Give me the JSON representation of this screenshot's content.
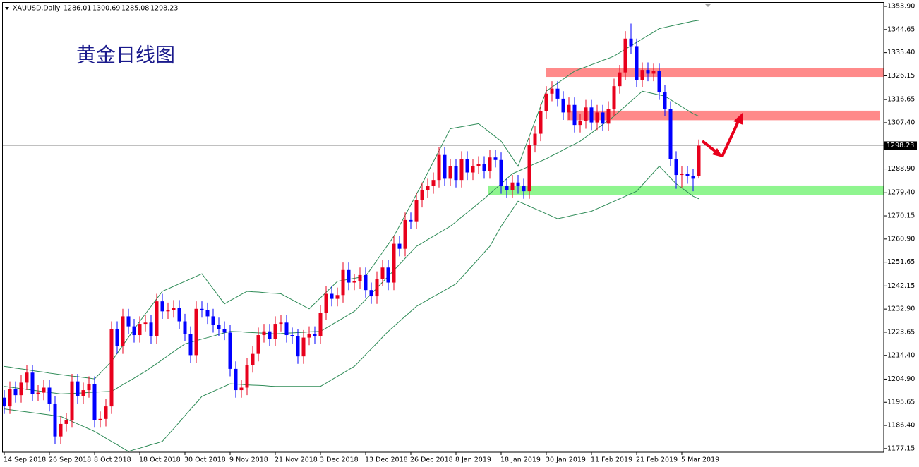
{
  "chart_data": {
    "type": "candlestick",
    "title": "XAUUSD,Daily",
    "annotation": "黄金日线图",
    "categories": [
      "14 Sep 2018",
      null,
      null,
      null,
      null,
      null,
      null,
      null,
      "26 Sep 2018",
      null,
      null,
      null,
      null,
      null,
      null,
      null,
      "8 Oct 2018",
      null,
      null,
      null,
      null,
      null,
      null,
      null,
      "18 Oct 2018",
      null,
      null,
      null,
      null,
      null,
      null,
      null,
      "30 Oct 2018",
      null,
      null,
      null,
      null,
      null,
      null,
      null,
      "9 Nov 2018",
      null,
      null,
      null,
      null,
      null,
      null,
      null,
      "21 Nov 2018",
      null,
      null,
      null,
      null,
      null,
      null,
      null,
      "3 Dec 2018",
      null,
      null,
      null,
      null,
      null,
      null,
      null,
      "13 Dec 2018",
      null,
      null,
      null,
      null,
      null,
      null,
      null,
      "26 Dec 2018",
      null,
      null,
      null,
      null,
      null,
      null,
      null,
      "8 Jan 2019",
      null,
      null,
      null,
      null,
      null,
      null,
      null,
      "18 Jan 2019",
      null,
      null,
      null,
      null,
      null,
      null,
      null,
      "30 Jan 2019",
      null,
      null,
      null,
      null,
      null,
      null,
      null,
      "11 Feb 2019",
      null,
      null,
      null,
      null,
      null,
      null,
      null,
      "21 Feb 2019",
      null,
      null,
      null,
      null,
      null,
      null,
      null,
      "5 Mar 2019",
      null,
      null,
      null
    ],
    "open": [
      1197.5,
      1194.0,
      1201.0,
      1198.5,
      1203.5,
      1207.5,
      1199.0,
      1199.5,
      1201.5,
      1195.0,
      1182.0,
      1187.0,
      1188.5,
      1204.0,
      1198.0,
      1200.5,
      1203.0,
      1188.5,
      1189.0,
      1194.0,
      1225.0,
      1218.0,
      1230.0,
      1226.0,
      1222.5,
      1227.0,
      1227.5,
      1222.0,
      1236.0,
      1232.0,
      1232.5,
      1233.5,
      1228.0,
      1223.0,
      1214.5,
      1233.0,
      1232.5,
      1230.0,
      1226.5,
      1225.0,
      1223.5,
      1209.0,
      1200.5,
      1201.5,
      1210.5,
      1215.0,
      1222.5,
      1224.0,
      1221.0,
      1227.0,
      1227.5,
      1222.5,
      1222.0,
      1214.0,
      1221.5,
      1223.0,
      1222.0,
      1231.5,
      1239.0,
      1237.0,
      1238.5,
      1248.5,
      1243.5,
      1244.0,
      1246.5,
      1240.5,
      1238.0,
      1245.0,
      1249.5,
      1243.5,
      1259.0,
      1257.0,
      1268.5,
      1268.0,
      1276.5,
      1280.5,
      1282.0,
      1284.5,
      1294.5,
      1285.0,
      1290.0,
      1284.5,
      1293.0,
      1287.5,
      1290.0,
      1291.0,
      1288.0,
      1293.5,
      1292.5,
      1282.0,
      1280.5,
      1283.5,
      1282.0,
      1280.0,
      1298.5,
      1303.0,
      1312.0,
      1319.0,
      1321.0,
      1317.0,
      1311.5,
      1314.5,
      1306.5,
      1308.0,
      1313.5,
      1307.5,
      1311.5,
      1307.0,
      1313.0,
      1322.0,
      1327.5,
      1341.0,
      1338.0,
      1324.5,
      1328.5,
      1327.0,
      1328.0,
      1319.5,
      1313.0,
      1293.0,
      1286.5,
      1287.0,
      1286.0,
      1286.01
    ],
    "high": [
      1200.5,
      1204,
      1204,
      1206.5,
      1210.5,
      1210.5,
      1202.5,
      1204.5,
      1204.5,
      1198,
      1190,
      1191.5,
      1207,
      1207,
      1203.5,
      1206,
      1206,
      1192,
      1197,
      1228,
      1228,
      1233,
      1233,
      1229,
      1230,
      1230.5,
      1230.5,
      1239,
      1239,
      1235.5,
      1236.5,
      1236.5,
      1231,
      1226,
      1236,
      1236,
      1235.5,
      1233,
      1229.5,
      1228,
      1226.5,
      1212,
      1204.5,
      1213.5,
      1218,
      1225.5,
      1227,
      1227,
      1230,
      1230.5,
      1230.5,
      1225.5,
      1225,
      1224.5,
      1226,
      1226,
      1234.5,
      1242,
      1242,
      1241.5,
      1251.5,
      1251.5,
      1247,
      1249.5,
      1249.5,
      1243.5,
      1248,
      1252.5,
      1252.5,
      1262,
      1262,
      1271.5,
      1271.5,
      1279.5,
      1283.5,
      1285,
      1287.5,
      1297.5,
      1297.5,
      1293,
      1293,
      1296,
      1296,
      1293,
      1294,
      1294,
      1296.5,
      1296.5,
      1295.5,
      1285,
      1286.5,
      1286.5,
      1285,
      1301.5,
      1306,
      1315,
      1322,
      1324,
      1324,
      1320,
      1317.5,
      1317.5,
      1311,
      1316.5,
      1316.5,
      1314.5,
      1314.5,
      1316,
      1325,
      1330.5,
      1344,
      1347,
      1341,
      1331.5,
      1331.5,
      1331,
      1331,
      1322.5,
      1316,
      1296,
      1290,
      1290,
      1289,
      1300.69
    ],
    "low": [
      1191,
      1191,
      1195.5,
      1195.5,
      1200.5,
      1196,
      1196,
      1196.5,
      1192,
      1179,
      1179,
      1184,
      1185.5,
      1195,
      1195,
      1197.5,
      1185.5,
      1185.5,
      1186,
      1191,
      1215,
      1215,
      1223,
      1219.5,
      1219.5,
      1224,
      1219,
      1219,
      1229,
      1229,
      1229.5,
      1225,
      1220,
      1211.5,
      1211.5,
      1229.5,
      1227,
      1223.5,
      1222,
      1220.5,
      1206,
      1197.5,
      1197.5,
      1198.5,
      1207.5,
      1212,
      1219.5,
      1218,
      1218,
      1224,
      1219.5,
      1219,
      1211,
      1211,
      1218.5,
      1219,
      1219,
      1228.5,
      1234,
      1234,
      1235.5,
      1240.5,
      1240.5,
      1241,
      1237.5,
      1235,
      1235,
      1242,
      1240.5,
      1240.5,
      1254,
      1254,
      1265,
      1265,
      1273.5,
      1277.5,
      1279,
      1281.5,
      1282,
      1282,
      1281.5,
      1281.5,
      1284.5,
      1284.5,
      1287,
      1285,
      1285,
      1289.5,
      1279,
      1277.5,
      1277.5,
      1279,
      1277,
      1277,
      1295.5,
      1300,
      1309,
      1316,
      1314,
      1308.5,
      1308.5,
      1303.5,
      1303.5,
      1305,
      1304.5,
      1304.5,
      1304,
      1304,
      1310,
      1319,
      1324.5,
      1335,
      1321.5,
      1321.5,
      1324,
      1324,
      1316.5,
      1310,
      1290,
      1281,
      1281.5,
      1283,
      1280,
      1285.08
    ],
    "close": [
      1194.0,
      1201.0,
      1198.5,
      1203.5,
      1207.5,
      1199.0,
      1199.5,
      1201.5,
      1195.0,
      1182.0,
      1187.0,
      1188.5,
      1204.0,
      1198.0,
      1200.5,
      1203.0,
      1188.5,
      1189.0,
      1194.0,
      1225.0,
      1218.0,
      1230.0,
      1226.0,
      1222.5,
      1227.0,
      1227.5,
      1222.0,
      1236.0,
      1232.0,
      1232.5,
      1233.5,
      1228.0,
      1223.0,
      1214.5,
      1233.0,
      1232.5,
      1230.0,
      1226.5,
      1225.0,
      1223.5,
      1209.0,
      1200.5,
      1201.5,
      1210.5,
      1215.0,
      1222.5,
      1224.0,
      1221.0,
      1227.0,
      1227.5,
      1222.5,
      1222.0,
      1214.0,
      1221.5,
      1223.0,
      1222.0,
      1231.5,
      1239.0,
      1237.0,
      1238.5,
      1248.5,
      1243.5,
      1244.0,
      1246.5,
      1240.5,
      1238.0,
      1245.0,
      1249.5,
      1243.5,
      1259.0,
      1257.0,
      1268.5,
      1268.0,
      1276.5,
      1280.5,
      1282.0,
      1284.5,
      1294.5,
      1285.0,
      1290.0,
      1284.5,
      1293.0,
      1287.5,
      1290.0,
      1291.0,
      1288.0,
      1293.5,
      1292.5,
      1282.0,
      1280.5,
      1283.5,
      1282.0,
      1280.0,
      1298.5,
      1303.0,
      1312.0,
      1319.0,
      1321.0,
      1317.0,
      1311.5,
      1314.5,
      1306.5,
      1308.0,
      1313.5,
      1307.5,
      1311.5,
      1307.0,
      1313.0,
      1322.0,
      1327.5,
      1341.0,
      1338.0,
      1324.5,
      1328.5,
      1327.0,
      1328.0,
      1319.5,
      1313.0,
      1293.0,
      1286.5,
      1287.0,
      1286.0,
      1285.0,
      1298.23
    ],
    "up_color": "#e8001c",
    "down_color": "#0000ff",
    "series": [
      {
        "color": "#2e8b57",
        "values": [
          1210,
          1209.7,
          1209.3,
          1209,
          1208.7,
          1208.3,
          1208,
          1207.7,
          1207.3,
          1207,
          1206.7,
          1206.4,
          1206.1,
          1205.9,
          1205.6,
          1205.3,
          1205,
          1207.3,
          1209.7,
          1212,
          1215.2,
          1218.4,
          1221.6,
          1224.8,
          1228,
          1231,
          1234,
          1237,
          1240,
          1241,
          1242,
          1243,
          1244,
          1245,
          1246,
          1247,
          1244,
          1241,
          1238,
          1235,
          1236.3,
          1237.5,
          1238.8,
          1240,
          1239.8,
          1239.7,
          1239.5,
          1239.3,
          1239.2,
          1239,
          1237.8,
          1236.6,
          1235.4,
          1234.2,
          1233,
          1235.2,
          1237.4,
          1239.6,
          1241.8,
          1244,
          1244.4,
          1244.8,
          1245.2,
          1245.6,
          1246,
          1249.2,
          1252.4,
          1255.6,
          1258.8,
          1262,
          1266.2,
          1270.4,
          1274.6,
          1278.8,
          1283,
          1287.4,
          1291.8,
          1296.2,
          1300.6,
          1305,
          1305.4,
          1305.8,
          1306.2,
          1306.6,
          1307,
          1305.3,
          1303.5,
          1301.8,
          1300,
          1296.7,
          1293.3,
          1290,
          1296,
          1302,
          1308,
          1314,
          1320,
          1321.6,
          1323.2,
          1324.8,
          1326.4,
          1328,
          1328.9,
          1329.7,
          1330.6,
          1331.4,
          1332.3,
          1333.1,
          1334,
          1335.4,
          1336.8,
          1338.1,
          1339.5,
          1340.9,
          1342.3,
          1343.6,
          1345,
          1345.5,
          1346,
          1346.5,
          1347,
          1347.5,
          1348,
          1348.3
        ]
      },
      {
        "color": "#2e8b57",
        "values": [
          1202,
          1201.7,
          1201.4,
          1201.1,
          1200.8,
          1200.5,
          1200.2,
          1199.9,
          1199.6,
          1199.3,
          1199,
          1199.1,
          1199.2,
          1199.3,
          1199.4,
          1199.6,
          1199.7,
          1199.8,
          1199.9,
          1200,
          1201.3,
          1202.7,
          1204,
          1205.3,
          1206.7,
          1208,
          1209.6,
          1211.1,
          1212.7,
          1214.3,
          1215.9,
          1217.4,
          1219,
          1219.6,
          1220.3,
          1220.9,
          1221.5,
          1222.1,
          1222.8,
          1223.4,
          1224,
          1223.9,
          1223.8,
          1223.6,
          1223.5,
          1223.4,
          1223.3,
          1223.1,
          1223,
          1223.1,
          1223.3,
          1223.4,
          1223.5,
          1223.6,
          1223.8,
          1223.9,
          1224,
          1225.3,
          1226.7,
          1228,
          1229.3,
          1230.7,
          1232,
          1234.3,
          1236.7,
          1239,
          1241.3,
          1243.7,
          1246,
          1248.4,
          1250.8,
          1253.2,
          1255.6,
          1258,
          1259.3,
          1260.7,
          1262,
          1263.3,
          1264.7,
          1266,
          1267.8,
          1269.7,
          1271.5,
          1273.3,
          1275.2,
          1277,
          1279,
          1281,
          1283,
          1285,
          1287,
          1288,
          1289,
          1290,
          1291,
          1292,
          1293,
          1294.2,
          1295.3,
          1296.5,
          1297.7,
          1298.8,
          1300,
          1301.7,
          1303.3,
          1305,
          1306.7,
          1308.3,
          1310,
          1312,
          1314,
          1316,
          1318,
          1320,
          1319.5,
          1319,
          1318.5,
          1318,
          1316.6,
          1315.2,
          1313.8,
          1312.4,
          1311,
          1310
        ]
      },
      {
        "color": "#2e8b57",
        "values": [
          1193,
          1192.7,
          1192.4,
          1192.1,
          1191.8,
          1191.5,
          1191.2,
          1190.9,
          1190.6,
          1190.3,
          1190,
          1189,
          1188,
          1187,
          1186,
          1185,
          1184,
          1182.7,
          1181.3,
          1180,
          1178.7,
          1177.3,
          1176,
          1176.7,
          1177.3,
          1178,
          1178.7,
          1179.3,
          1180,
          1182.6,
          1185.1,
          1187.7,
          1190.3,
          1192.9,
          1195.4,
          1198,
          1199,
          1200,
          1201,
          1202,
          1203,
          1202.9,
          1202.8,
          1202.6,
          1202.5,
          1202.4,
          1202.3,
          1202.1,
          1202,
          1202,
          1202,
          1202,
          1202,
          1202,
          1202,
          1202,
          1202,
          1203.3,
          1204.7,
          1206,
          1207.3,
          1208.7,
          1210,
          1212.3,
          1214.7,
          1217,
          1219.3,
          1221.7,
          1224,
          1226,
          1228,
          1230,
          1232,
          1234,
          1235.3,
          1236.6,
          1237.9,
          1239.1,
          1240.4,
          1241.7,
          1243,
          1245.5,
          1248,
          1250.5,
          1253,
          1255.5,
          1258,
          1262,
          1266,
          1269.3,
          1272.7,
          1276,
          1275,
          1274,
          1273,
          1272,
          1271,
          1270,
          1269,
          1269.5,
          1270,
          1270.5,
          1271,
          1271.5,
          1272,
          1273,
          1274,
          1275,
          1276,
          1277,
          1278,
          1279,
          1280,
          1282.5,
          1285,
          1287.5,
          1290,
          1287.7,
          1285.3,
          1283,
          1281.3,
          1279.7,
          1278,
          1277
        ]
      }
    ],
    "zones": [
      {
        "low": 1325.7,
        "high": 1329.2,
        "color": "#ff8a8a"
      },
      {
        "low": 1308.4,
        "high": 1312.2,
        "color": "#ff8a8a"
      },
      {
        "low": 1278.5,
        "high": 1282.3,
        "color": "#8ff58f"
      }
    ],
    "price_line_color": "#c0c0c0",
    "ylim": [
      1175.7,
      1355.6
    ],
    "yticks": [
      1177.15,
      {
        "value": 1186.4,
        "label": "1186.40"
      },
      1195.65,
      {
        "value": 1204.9,
        "label": "1204.90"
      },
      {
        "value": 1214.4,
        "label": "1214.40"
      },
      1223.65,
      {
        "value": 1232.9,
        "label": "1232.90"
      },
      1242.15,
      1251.65,
      {
        "value": 1260.9,
        "label": "1260.90"
      },
      1270.15,
      {
        "value": 1279.4,
        "label": "1279.40"
      },
      {
        "value": 1288.9,
        "label": "1288.90"
      },
      {
        "value": 1307.4,
        "label": "1307.40"
      },
      1316.65,
      1326.15,
      {
        "value": 1335.4,
        "label": "1335.40"
      },
      1344.65,
      {
        "value": 1353.9,
        "label": "1353.90"
      }
    ],
    "grid": false
  }
}
